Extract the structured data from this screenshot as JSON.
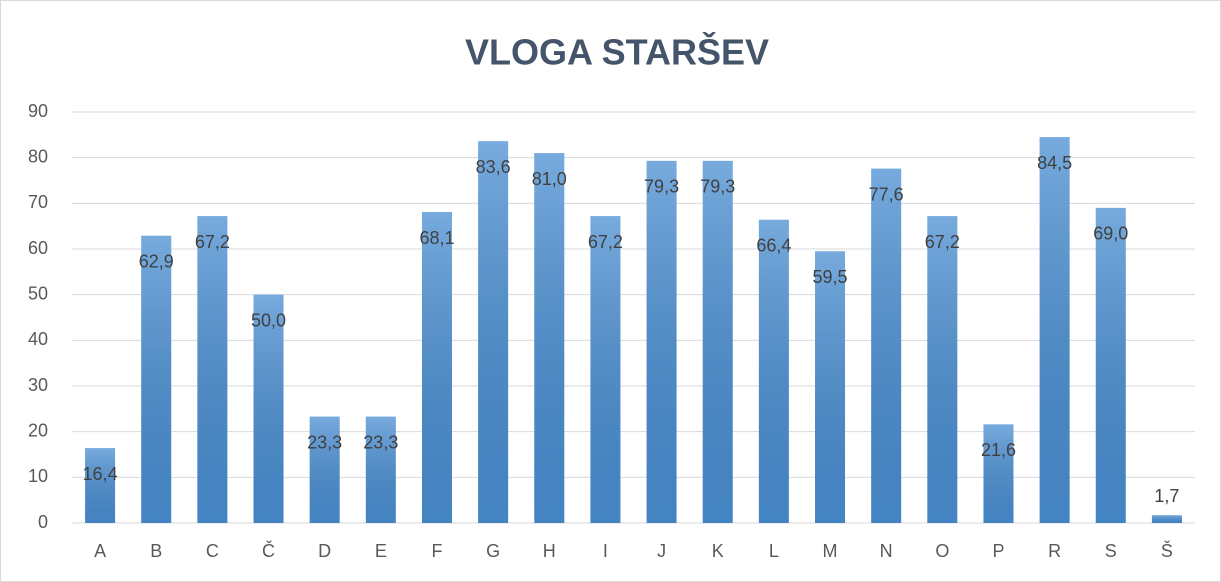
{
  "chart_data": {
    "type": "bar",
    "title": "VLOGA STARŠEV",
    "categories": [
      "A",
      "B",
      "C",
      "Č",
      "D",
      "E",
      "F",
      "G",
      "H",
      "I",
      "J",
      "K",
      "L",
      "M",
      "N",
      "O",
      "P",
      "R",
      "S",
      "Š"
    ],
    "values": [
      16.4,
      62.9,
      67.2,
      50.0,
      23.3,
      23.3,
      68.1,
      83.6,
      81.0,
      67.2,
      79.3,
      79.3,
      66.4,
      59.5,
      77.6,
      67.2,
      21.6,
      84.5,
      69.0,
      1.7
    ],
    "value_labels": [
      "16,4",
      "62,9",
      "67,2",
      "50,0",
      "23,3",
      "23,3",
      "68,1",
      "83,6",
      "81,0",
      "67,2",
      "79,3",
      "79,3",
      "66,4",
      "59,5",
      "77,6",
      "67,2",
      "21,6",
      "84,5",
      "69,0",
      "1,7"
    ],
    "color": "#4a8fd3",
    "ylim": [
      0,
      90
    ],
    "yticks": [
      0,
      10,
      20,
      30,
      40,
      50,
      60,
      70,
      80,
      90
    ],
    "grid": true
  }
}
